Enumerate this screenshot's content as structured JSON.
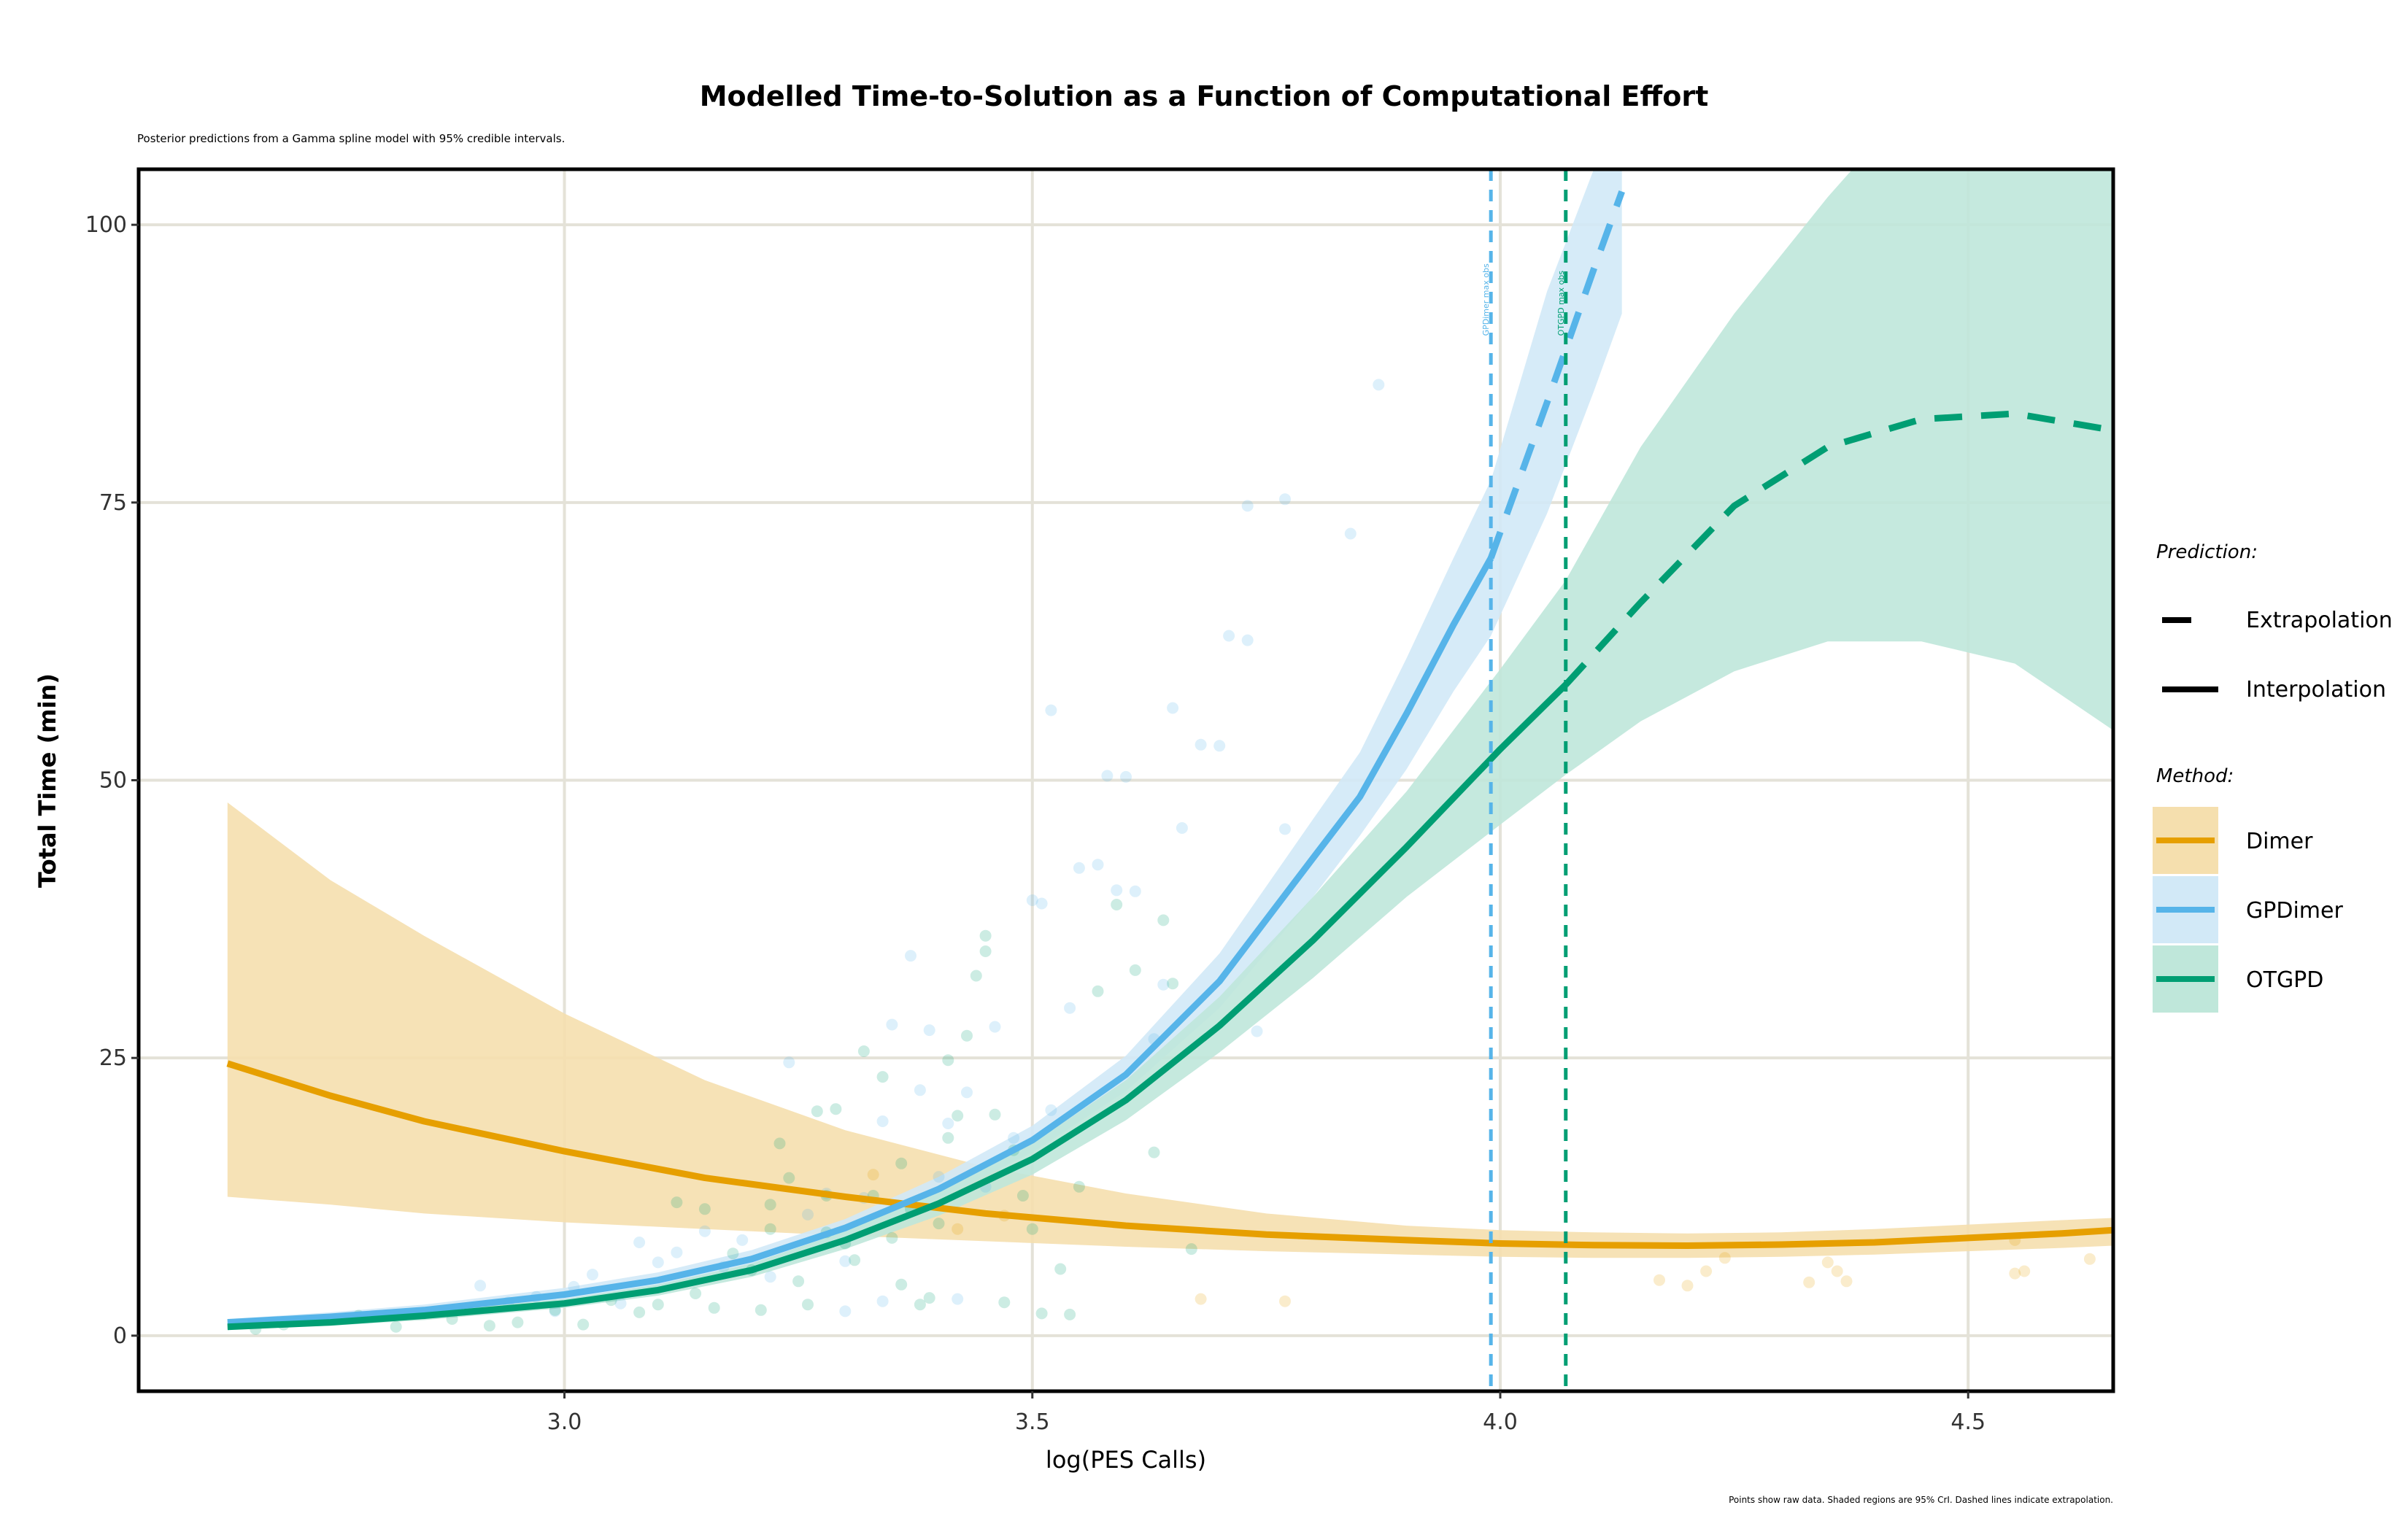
{
  "chart_data": {
    "type": "line",
    "title": "Modelled Time-to-Solution as a Function of Computational Effort",
    "subtitle": "Posterior predictions from a Gamma spline model with 95% credible intervals.",
    "caption": "Points show raw data. Shaded regions are 95% CrI. Dashed lines indicate extrapolation.",
    "xlabel": "log(PES Calls)",
    "ylabel": "Total Time (min)",
    "xlim": [
      2.545,
      4.655
    ],
    "ylim": [
      -5,
      105
    ],
    "x_ticks": [
      3.0,
      3.5,
      4.0,
      4.5
    ],
    "x_tick_labels": [
      "3.0",
      "3.5",
      "4.0",
      "4.5"
    ],
    "y_ticks": [
      0,
      25,
      50,
      75,
      100
    ],
    "y_tick_labels": [
      "0",
      "25",
      "50",
      "75",
      "100"
    ],
    "grid": true,
    "legend": {
      "position": "right",
      "prediction_title": "Prediction:",
      "prediction_items": [
        {
          "label": "Extrapolation",
          "dash": true
        },
        {
          "label": "Interpolation",
          "dash": false
        }
      ],
      "method_title": "Method:"
    },
    "series": [
      {
        "name": "Dimer",
        "color": "#E69F00",
        "fill": "#F5DFAE",
        "x": [
          2.64,
          2.75,
          2.85,
          3.0,
          3.15,
          3.3,
          3.45,
          3.6,
          3.75,
          3.9,
          4.0,
          4.1,
          4.2,
          4.3,
          4.4,
          4.5,
          4.6,
          4.655
        ],
        "y": [
          24.5,
          21.6,
          19.3,
          16.6,
          14.2,
          12.5,
          11.0,
          9.9,
          9.1,
          8.6,
          8.3,
          8.15,
          8.1,
          8.2,
          8.4,
          8.8,
          9.2,
          9.5
        ],
        "lower": [
          12.5,
          11.8,
          11.0,
          10.2,
          9.6,
          9.0,
          8.5,
          8.0,
          7.6,
          7.3,
          7.1,
          7.0,
          7.0,
          7.1,
          7.3,
          7.6,
          7.9,
          8.1
        ],
        "upper": [
          48.0,
          41.0,
          36.0,
          29.0,
          23.0,
          18.5,
          15.2,
          12.8,
          11.0,
          9.9,
          9.5,
          9.3,
          9.2,
          9.3,
          9.6,
          10.0,
          10.4,
          10.6
        ],
        "interp_max_x": 4.655,
        "cutoff_label": "",
        "points": [
          [
            3.68,
            3.3
          ],
          [
            3.77,
            3.1
          ],
          [
            4.17,
            5.0
          ],
          [
            4.2,
            4.5
          ],
          [
            4.22,
            5.8
          ],
          [
            4.24,
            7.0
          ],
          [
            4.33,
            4.8
          ],
          [
            4.35,
            6.6
          ],
          [
            4.36,
            5.8
          ],
          [
            4.37,
            4.9
          ],
          [
            4.55,
            5.6
          ],
          [
            4.56,
            5.8
          ],
          [
            4.63,
            6.9
          ],
          [
            4.55,
            8.6
          ],
          [
            3.42,
            9.6
          ],
          [
            3.47,
            10.8
          ],
          [
            3.33,
            14.5
          ]
        ]
      },
      {
        "name": "GPDimer",
        "color": "#56B4E9",
        "fill": "#D2E9F7",
        "x": [
          2.64,
          2.75,
          2.85,
          3.0,
          3.1,
          3.2,
          3.3,
          3.4,
          3.5,
          3.6,
          3.7,
          3.8,
          3.85,
          3.9,
          3.95,
          3.99,
          4.05,
          4.1,
          4.13
        ],
        "y": [
          1.2,
          1.7,
          2.3,
          3.7,
          5.0,
          6.9,
          9.7,
          13.2,
          17.6,
          23.5,
          31.9,
          43.0,
          48.5,
          56.0,
          64.0,
          70.0,
          84.0,
          96.0,
          103.0
        ],
        "lower": [
          0.9,
          1.3,
          1.8,
          3.2,
          4.4,
          6.2,
          8.9,
          12.3,
          16.5,
          22.0,
          29.5,
          39.5,
          45.0,
          51.0,
          58.0,
          63.0,
          74.0,
          85.0,
          92.0
        ],
        "upper": [
          1.5,
          2.1,
          2.8,
          4.3,
          5.7,
          7.7,
          10.5,
          14.3,
          18.9,
          25.2,
          34.4,
          46.5,
          52.5,
          61.0,
          70.0,
          77.0,
          94.0,
          105.0,
          115.0
        ],
        "interp_max_x": 3.99,
        "cutoff_label": "GPDimer max obs",
        "points": [
          [
            2.91,
            4.5
          ],
          [
            2.94,
            3.0
          ],
          [
            2.97,
            3.5
          ],
          [
            2.99,
            2.2
          ],
          [
            3.01,
            4.4
          ],
          [
            3.03,
            5.5
          ],
          [
            3.06,
            2.9
          ],
          [
            3.08,
            8.4
          ],
          [
            3.1,
            6.6
          ],
          [
            3.12,
            7.5
          ],
          [
            3.15,
            9.4
          ],
          [
            3.17,
            6.2
          ],
          [
            3.19,
            8.6
          ],
          [
            3.22,
            5.3
          ],
          [
            3.24,
            24.6
          ],
          [
            3.26,
            10.9
          ],
          [
            3.28,
            12.8
          ],
          [
            3.3,
            6.7
          ],
          [
            3.32,
            12.4
          ],
          [
            3.34,
            19.3
          ],
          [
            3.35,
            28.0
          ],
          [
            3.37,
            34.2
          ],
          [
            3.38,
            22.1
          ],
          [
            3.39,
            27.5
          ],
          [
            3.4,
            14.3
          ],
          [
            3.41,
            19.1
          ],
          [
            3.43,
            21.9
          ],
          [
            3.45,
            13.4
          ],
          [
            3.46,
            27.8
          ],
          [
            3.48,
            17.8
          ],
          [
            3.5,
            39.2
          ],
          [
            3.51,
            38.9
          ],
          [
            3.52,
            20.3
          ],
          [
            3.54,
            29.5
          ],
          [
            3.55,
            42.1
          ],
          [
            3.57,
            42.4
          ],
          [
            3.58,
            50.4
          ],
          [
            3.59,
            40.1
          ],
          [
            3.6,
            50.3
          ],
          [
            3.61,
            40.0
          ],
          [
            3.63,
            26.7
          ],
          [
            3.64,
            31.6
          ],
          [
            3.65,
            56.5
          ],
          [
            3.66,
            45.7
          ],
          [
            3.68,
            53.2
          ],
          [
            3.7,
            53.1
          ],
          [
            3.71,
            63.0
          ],
          [
            3.73,
            62.6
          ],
          [
            3.73,
            74.7
          ],
          [
            3.77,
            75.3
          ],
          [
            3.77,
            45.6
          ],
          [
            3.84,
            72.2
          ],
          [
            3.87,
            85.6
          ],
          [
            3.52,
            56.3
          ],
          [
            3.74,
            27.4
          ],
          [
            3.3,
            2.2
          ],
          [
            3.34,
            3.1
          ],
          [
            3.42,
            3.3
          ]
        ]
      },
      {
        "name": "OTGPD",
        "color": "#009E73",
        "fill": "#BFE7DA",
        "x": [
          2.64,
          2.75,
          2.85,
          3.0,
          3.1,
          3.2,
          3.3,
          3.4,
          3.5,
          3.6,
          3.7,
          3.8,
          3.9,
          4.0,
          4.07,
          4.15,
          4.25,
          4.35,
          4.45,
          4.55,
          4.655
        ],
        "y": [
          0.8,
          1.2,
          1.8,
          2.9,
          4.1,
          5.9,
          8.6,
          11.9,
          15.9,
          21.2,
          27.9,
          35.6,
          44.0,
          52.8,
          58.6,
          66.0,
          74.7,
          80.0,
          82.5,
          83.0,
          81.5
        ],
        "lower": [
          0.6,
          0.9,
          1.4,
          2.5,
          3.6,
          5.3,
          7.8,
          10.8,
          14.5,
          19.4,
          25.5,
          32.2,
          39.5,
          46.0,
          50.5,
          55.3,
          59.8,
          62.5,
          62.5,
          60.5,
          54.5
        ],
        "upper": [
          1.0,
          1.5,
          2.2,
          3.3,
          4.6,
          6.5,
          9.4,
          13.0,
          17.3,
          23.0,
          30.5,
          39.5,
          49.0,
          60.0,
          68.0,
          80.0,
          92.0,
          102.5,
          112.0,
          118.0,
          124.0
        ],
        "interp_max_x": 4.07,
        "cutoff_label": "OTGPD max obs",
        "points": [
          [
            2.67,
            0.6
          ],
          [
            2.7,
            1.0
          ],
          [
            2.74,
            1.4
          ],
          [
            2.78,
            1.8
          ],
          [
            2.82,
            0.8
          ],
          [
            2.85,
            2.0
          ],
          [
            2.88,
            1.5
          ],
          [
            2.92,
            0.9
          ],
          [
            2.95,
            1.2
          ],
          [
            2.99,
            2.3
          ],
          [
            3.02,
            1.0
          ],
          [
            3.05,
            3.2
          ],
          [
            3.08,
            2.1
          ],
          [
            3.1,
            2.8
          ],
          [
            3.12,
            12.0
          ],
          [
            3.14,
            3.8
          ],
          [
            3.15,
            11.4
          ],
          [
            3.16,
            2.5
          ],
          [
            3.18,
            7.4
          ],
          [
            3.2,
            5.9
          ],
          [
            3.21,
            2.3
          ],
          [
            3.22,
            9.6
          ],
          [
            3.23,
            17.3
          ],
          [
            3.24,
            14.2
          ],
          [
            3.25,
            4.9
          ],
          [
            3.26,
            2.8
          ],
          [
            3.27,
            20.2
          ],
          [
            3.28,
            12.6
          ],
          [
            3.29,
            20.4
          ],
          [
            3.3,
            8.3
          ],
          [
            3.31,
            6.8
          ],
          [
            3.33,
            12.6
          ],
          [
            3.34,
            23.3
          ],
          [
            3.35,
            8.8
          ],
          [
            3.36,
            15.5
          ],
          [
            3.37,
            11.4
          ],
          [
            3.38,
            2.8
          ],
          [
            3.39,
            3.4
          ],
          [
            3.4,
            10.1
          ],
          [
            3.41,
            17.8
          ],
          [
            3.42,
            19.8
          ],
          [
            3.43,
            27.0
          ],
          [
            3.44,
            32.4
          ],
          [
            3.45,
            36.0
          ],
          [
            3.46,
            19.9
          ],
          [
            3.47,
            3.0
          ],
          [
            3.48,
            16.7
          ],
          [
            3.49,
            12.6
          ],
          [
            3.5,
            9.6
          ],
          [
            3.51,
            2.0
          ],
          [
            3.53,
            6.0
          ],
          [
            3.55,
            13.4
          ],
          [
            3.57,
            31.0
          ],
          [
            3.59,
            38.8
          ],
          [
            3.61,
            32.9
          ],
          [
            3.63,
            16.5
          ],
          [
            3.64,
            37.4
          ],
          [
            3.65,
            31.7
          ],
          [
            3.67,
            7.8
          ],
          [
            3.32,
            25.6
          ],
          [
            3.41,
            24.8
          ],
          [
            3.45,
            34.6
          ],
          [
            3.54,
            1.9
          ],
          [
            3.36,
            4.6
          ],
          [
            3.28,
            9.3
          ],
          [
            3.22,
            11.8
          ]
        ]
      }
    ]
  }
}
